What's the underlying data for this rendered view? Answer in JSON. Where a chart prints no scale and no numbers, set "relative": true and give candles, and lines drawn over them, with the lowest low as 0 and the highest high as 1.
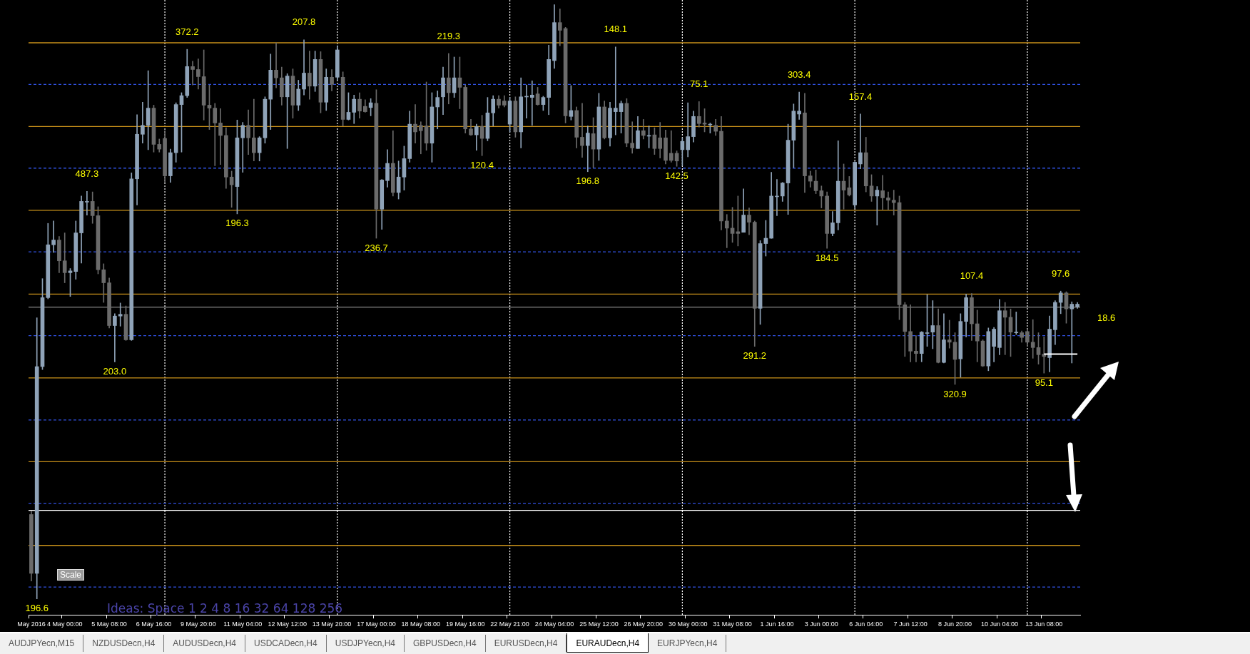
{
  "chart_data": {
    "type": "candlestick",
    "relative": true,
    "categories": [
      "May 2016",
      null,
      null,
      null,
      null,
      null,
      "4 May 00:00",
      null,
      null,
      null,
      null,
      null,
      null,
      null,
      "5 May 08:00",
      null,
      null,
      null,
      null,
      null,
      null,
      null,
      "6 May 16:00",
      null,
      null,
      null,
      null,
      null,
      null,
      null,
      "9 May 20:00",
      null,
      null,
      null,
      null,
      null,
      null,
      null,
      "11 May 04:00",
      null,
      null,
      null,
      null,
      null,
      null,
      null,
      "12 May 12:00",
      null,
      null,
      null,
      null,
      null,
      null,
      null,
      "13 May 20:00",
      null,
      null,
      null,
      null,
      null,
      null,
      null,
      "17 May 00:00",
      null,
      null,
      null,
      null,
      null,
      null,
      null,
      "18 May 08:00",
      null,
      null,
      null,
      null,
      null,
      null,
      null,
      "19 May 16:00",
      null,
      null,
      null,
      null,
      null,
      null,
      null,
      "22 May 21:00",
      null,
      null,
      null,
      null,
      null,
      null,
      null,
      "24 May 04:00",
      null,
      null,
      null,
      null,
      null,
      null,
      null,
      "25 May 12:00",
      null,
      null,
      null,
      null,
      null,
      null,
      null,
      "26 May 20:00",
      null,
      null,
      null,
      null,
      null,
      null,
      null,
      "30 May 00:00",
      null,
      null,
      null,
      null,
      null,
      null,
      null,
      "31 May 08:00",
      null,
      null,
      null,
      null,
      null,
      null,
      null,
      "1 Jun 16:00",
      null,
      null,
      null,
      null,
      null,
      null,
      null,
      "3 Jun 00:00",
      null,
      null,
      null,
      null,
      null,
      null,
      null,
      "6 Jun 04:00",
      null,
      null,
      null,
      null,
      null,
      null,
      null,
      "7 Jun 12:00",
      null,
      null,
      null,
      null,
      null,
      null,
      null,
      "8 Jun 20:00",
      null,
      null,
      null,
      null,
      null,
      null,
      null,
      "10 Jun 04:00",
      null,
      null,
      null,
      null,
      null,
      null,
      null,
      "13 Jun 08:00",
      null,
      null,
      null,
      null,
      null,
      null
    ],
    "ohlc": [
      [
        0.142,
        0.148,
        0.03,
        0.043
      ],
      [
        0.043,
        0.473,
        0,
        0.391
      ],
      [
        0.391,
        0.539,
        0.386,
        0.507
      ],
      [
        0.507,
        0.632,
        0.505,
        0.596
      ],
      [
        0.596,
        0.636,
        0.583,
        0.604
      ],
      [
        0.604,
        0.61,
        0.549,
        0.569
      ],
      [
        0.569,
        0.616,
        0.532,
        0.549
      ],
      [
        0.549,
        0.556,
        0.509,
        0.552
      ],
      [
        0.551,
        0.636,
        0.538,
        0.616
      ],
      [
        0.616,
        0.678,
        0.565,
        0.669
      ],
      [
        0.669,
        0.686,
        0.646,
        0.669
      ],
      [
        0.669,
        0.685,
        0.632,
        0.645
      ],
      [
        0.645,
        0.66,
        0.547,
        0.554
      ],
      [
        0.554,
        0.564,
        0.499,
        0.532
      ],
      [
        0.532,
        0.54,
        0.456,
        0.46
      ],
      [
        0.46,
        0.48,
        0.399,
        0.476
      ],
      [
        0.476,
        0.498,
        0.459,
        0.479
      ],
      [
        0.479,
        0.493,
        0.435,
        0.436
      ],
      [
        0.436,
        0.717,
        0.435,
        0.707
      ],
      [
        0.707,
        0.815,
        0.663,
        0.782
      ],
      [
        0.782,
        0.836,
        0.767,
        0.797
      ],
      [
        0.797,
        0.889,
        0.756,
        0.826
      ],
      [
        0.826,
        0.831,
        0.752,
        0.765
      ],
      [
        0.765,
        0.774,
        0.752,
        0.757
      ],
      [
        0.775,
        0.788,
        0.701,
        0.712
      ],
      [
        0.712,
        0.757,
        0.701,
        0.751
      ],
      [
        0.751,
        0.835,
        0.735,
        0.832
      ],
      [
        0.832,
        0.852,
        0.752,
        0.847
      ],
      [
        0.847,
        0.925,
        0.844,
        0.896
      ],
      [
        0.896,
        0.905,
        0.865,
        0.891
      ],
      [
        0.891,
        0.909,
        0.858,
        0.879
      ],
      [
        0.879,
        0.924,
        0.806,
        0.831
      ],
      [
        0.831,
        0.865,
        0.79,
        0.826
      ],
      [
        0.826,
        0.834,
        0.729,
        0.801
      ],
      [
        0.801,
        0.825,
        0.731,
        0.78
      ],
      [
        0.78,
        0.793,
        0.691,
        0.71
      ],
      [
        0.71,
        0.72,
        0.659,
        0.697
      ],
      [
        0.694,
        0.806,
        0.648,
        0.776
      ],
      [
        0.776,
        0.802,
        0.718,
        0.797
      ],
      [
        0.797,
        0.823,
        0.748,
        0.776
      ],
      [
        0.776,
        0.841,
        0.737,
        0.751
      ],
      [
        0.751,
        0.778,
        0.737,
        0.776
      ],
      [
        0.776,
        0.845,
        0.767,
        0.841
      ],
      [
        0.841,
        0.917,
        0.79,
        0.89
      ],
      [
        0.89,
        0.936,
        0.86,
        0.877
      ],
      [
        0.877,
        0.895,
        0.831,
        0.845
      ],
      [
        0.845,
        0.884,
        0.758,
        0.88
      ],
      [
        0.88,
        0.892,
        0.809,
        0.831
      ],
      [
        0.831,
        0.873,
        0.822,
        0.858
      ],
      [
        0.858,
        0.941,
        0.848,
        0.885
      ],
      [
        0.885,
        0.922,
        0.841,
        0.863
      ],
      [
        0.863,
        0.922,
        0.854,
        0.908
      ],
      [
        0.908,
        0.921,
        0.818,
        0.836
      ],
      [
        0.836,
        0.892,
        0.822,
        0.878
      ],
      [
        0.878,
        0.891,
        0.855,
        0.866
      ],
      [
        0.878,
        0.931,
        0.873,
        0.924
      ],
      [
        0.878,
        0.887,
        0.796,
        0.807
      ],
      [
        0.807,
        0.852,
        0.806,
        0.819
      ],
      [
        0.819,
        0.848,
        0.8,
        0.841
      ],
      [
        0.841,
        0.852,
        0.809,
        0.821
      ],
      [
        0.829,
        0.84,
        0.819,
        0.82
      ],
      [
        0.827,
        0.842,
        0.813,
        0.835
      ],
      [
        0.834,
        0.857,
        0.607,
        0.656
      ],
      [
        0.656,
        0.706,
        0.622,
        0.705
      ],
      [
        0.704,
        0.756,
        0.693,
        0.733
      ],
      [
        0.733,
        0.788,
        0.678,
        0.684
      ],
      [
        0.684,
        0.737,
        0.673,
        0.71
      ],
      [
        0.71,
        0.762,
        0.688,
        0.741
      ],
      [
        0.741,
        0.821,
        0.735,
        0.799
      ],
      [
        0.799,
        0.832,
        0.767,
        0.786
      ],
      [
        0.797,
        0.803,
        0.749,
        0.788
      ],
      [
        0.796,
        0.87,
        0.755,
        0.767
      ],
      [
        0.767,
        0.852,
        0.735,
        0.828
      ],
      [
        0.828,
        0.855,
        0.791,
        0.844
      ],
      [
        0.845,
        0.895,
        0.815,
        0.877
      ],
      [
        0.877,
        0.918,
        0.833,
        0.852
      ],
      [
        0.852,
        0.912,
        0.844,
        0.877
      ],
      [
        0.877,
        0.912,
        0.825,
        0.861
      ],
      [
        0.861,
        0.865,
        0.784,
        0.791
      ],
      [
        0.791,
        0.807,
        0.78,
        0.781
      ],
      [
        0.781,
        0.799,
        0.755,
        0.795
      ],
      [
        0.795,
        0.814,
        0.746,
        0.775
      ],
      [
        0.775,
        0.844,
        0.771,
        0.818
      ],
      [
        0.818,
        0.847,
        0.796,
        0.841
      ],
      [
        0.841,
        0.847,
        0.826,
        0.831
      ],
      [
        0.838,
        0.847,
        0.828,
        0.831
      ],
      [
        0.799,
        0.844,
        0.786,
        0.838
      ],
      [
        0.838,
        0.845,
        0.777,
        0.786
      ],
      [
        0.786,
        0.877,
        0.759,
        0.845
      ],
      [
        0.846,
        0.865,
        0.809,
        0.846
      ],
      [
        0.844,
        0.872,
        0.797,
        0.848
      ],
      [
        0.85,
        0.861,
        0.831,
        0.832
      ],
      [
        0.832,
        0.846,
        0.822,
        0.844
      ],
      [
        0.844,
        0.932,
        0.815,
        0.908
      ],
      [
        0.906,
        1,
        0.893,
        0.97
      ],
      [
        0.97,
        0.993,
        0.931,
        0.957
      ],
      [
        0.96,
        0.962,
        0.801,
        0.813
      ],
      [
        0.812,
        0.864,
        0.806,
        0.822
      ],
      [
        0.822,
        0.828,
        0.759,
        0.777
      ],
      [
        0.777,
        0.834,
        0.743,
        0.763
      ],
      [
        0.763,
        0.796,
        0.719,
        0.784
      ],
      [
        0.783,
        0.81,
        0.726,
        0.757
      ],
      [
        0.757,
        0.851,
        0.738,
        0.828
      ],
      [
        0.828,
        0.838,
        0.774,
        0.776
      ],
      [
        0.776,
        0.836,
        0.762,
        0.826
      ],
      [
        0.82,
        0.929,
        0.781,
        0.826
      ],
      [
        0.82,
        0.838,
        0.784,
        0.834
      ],
      [
        0.834,
        0.842,
        0.761,
        0.767
      ],
      [
        0.767,
        0.803,
        0.75,
        0.759
      ],
      [
        0.758,
        0.812,
        0.758,
        0.788
      ],
      [
        0.788,
        0.807,
        0.774,
        0.78
      ],
      [
        0.78,
        0.796,
        0.759,
        0.78
      ],
      [
        0.781,
        0.793,
        0.748,
        0.758
      ],
      [
        0.776,
        0.802,
        0.742,
        0.758
      ],
      [
        0.776,
        0.789,
        0.732,
        0.738
      ],
      [
        0.75,
        0.788,
        0.735,
        0.738
      ],
      [
        0.75,
        0.754,
        0.728,
        0.737
      ],
      [
        0.756,
        0.776,
        0.729,
        0.77
      ],
      [
        0.756,
        0.835,
        0.744,
        0.778
      ],
      [
        0.778,
        0.821,
        0.769,
        0.812
      ],
      [
        0.812,
        0.837,
        0.794,
        0.8
      ],
      [
        0.801,
        0.825,
        0.786,
        0.799
      ],
      [
        0.799,
        0.801,
        0.784,
        0.799
      ],
      [
        0.797,
        0.807,
        0.78,
        0.787
      ],
      [
        0.787,
        0.812,
        0.621,
        0.636
      ],
      [
        0.636,
        0.647,
        0.591,
        0.624
      ],
      [
        0.624,
        0.659,
        0.6,
        0.615
      ],
      [
        0.618,
        0.678,
        0.594,
        0.615
      ],
      [
        0.617,
        0.69,
        0.617,
        0.646
      ],
      [
        0.646,
        0.658,
        0.613,
        0.634
      ],
      [
        0.634,
        0.636,
        0.425,
        0.489
      ],
      [
        0.489,
        0.603,
        0.462,
        0.598
      ],
      [
        0.598,
        0.637,
        0.577,
        0.607
      ],
      [
        0.607,
        0.718,
        0.607,
        0.678
      ],
      [
        0.678,
        0.706,
        0.645,
        0.678
      ],
      [
        0.678,
        0.701,
        0.669,
        0.7
      ],
      [
        0.7,
        0.799,
        0.647,
        0.772
      ],
      [
        0.772,
        0.833,
        0.726,
        0.821
      ],
      [
        0.816,
        0.853,
        0.807,
        0.821
      ],
      [
        0.818,
        0.851,
        0.684,
        0.712
      ],
      [
        0.712,
        0.72,
        0.693,
        0.703
      ],
      [
        0.703,
        0.722,
        0.682,
        0.687
      ],
      [
        0.687,
        0.695,
        0.658,
        0.678
      ],
      [
        0.678,
        0.685,
        0.59,
        0.615
      ],
      [
        0.615,
        0.652,
        0.611,
        0.633
      ],
      [
        0.633,
        0.771,
        0.621,
        0.703
      ],
      [
        0.703,
        0.732,
        0.656,
        0.688
      ],
      [
        0.692,
        0.711,
        0.678,
        0.68
      ],
      [
        0.663,
        0.736,
        0.658,
        0.735
      ],
      [
        0.732,
        0.816,
        0.724,
        0.751
      ],
      [
        0.751,
        0.777,
        0.685,
        0.695
      ],
      [
        0.695,
        0.714,
        0.669,
        0.678
      ],
      [
        0.678,
        0.694,
        0.629,
        0.688
      ],
      [
        0.687,
        0.713,
        0.655,
        0.675
      ],
      [
        0.675,
        0.685,
        0.655,
        0.671
      ],
      [
        0.671,
        0.688,
        0.646,
        0.667
      ],
      [
        0.667,
        0.678,
        0.47,
        0.495
      ],
      [
        0.495,
        0.499,
        0.408,
        0.45
      ],
      [
        0.45,
        0.495,
        0.399,
        0.417
      ],
      [
        0.417,
        0.443,
        0.399,
        0.413
      ],
      [
        0.413,
        0.45,
        0.399,
        0.449
      ],
      [
        0.448,
        0.512,
        0.425,
        0.448
      ],
      [
        0.449,
        0.502,
        0.421,
        0.46
      ],
      [
        0.46,
        0.488,
        0.397,
        0.398
      ],
      [
        0.398,
        0.48,
        0.397,
        0.436
      ],
      [
        0.436,
        0.469,
        0.422,
        0.432
      ],
      [
        0.432,
        0.448,
        0.361,
        0.403
      ],
      [
        0.404,
        0.48,
        0.373,
        0.467
      ],
      [
        0.467,
        0.513,
        0.441,
        0.507
      ],
      [
        0.507,
        0.514,
        0.435,
        0.463
      ],
      [
        0.463,
        0.486,
        0.399,
        0.434
      ],
      [
        0.434,
        0.436,
        0.391,
        0.392
      ],
      [
        0.392,
        0.456,
        0.384,
        0.45
      ],
      [
        0.425,
        0.457,
        0.399,
        0.454
      ],
      [
        0.423,
        0.504,
        0.411,
        0.485
      ],
      [
        0.485,
        0.499,
        0.411,
        0.474
      ],
      [
        0.474,
        0.488,
        0.408,
        0.449
      ],
      [
        0.449,
        0.483,
        0.445,
        0.449
      ],
      [
        0.448,
        0.451,
        0.432,
        0.44
      ],
      [
        0.45,
        0.454,
        0.425,
        0.432
      ],
      [
        0.432,
        0.47,
        0.405,
        0.423
      ],
      [
        0.423,
        0.448,
        0.395,
        0.411
      ],
      [
        0.412,
        0.441,
        0.38,
        0.408
      ],
      [
        0.406,
        0.476,
        0.382,
        0.454
      ],
      [
        0.453,
        0.502,
        0.428,
        0.499
      ],
      [
        0.499,
        0.518,
        0.48,
        0.515
      ],
      [
        0.515,
        0.517,
        0.464,
        0.488
      ],
      [
        0.488,
        0.5,
        0.397,
        0.496
      ],
      [
        0.492,
        0.499,
        0.489,
        0.496
      ]
    ],
    "colors": [
      "#6b6b6b",
      "#8fa3b8",
      "#8fa3b8",
      "#8fa3b8",
      "#8fa3b8",
      "#6b6b6b",
      "#6b6b6b",
      "#8fa3b8",
      "#8fa3b8",
      "#8fa3b8",
      "#8fa3b8",
      "#6b6b6b",
      "#6b6b6b",
      "#6b6b6b",
      "#6b6b6b",
      "#8fa3b8",
      "#8fa3b8",
      "#6b6b6b",
      "#8fa3b8",
      "#8fa3b8",
      "#8fa3b8",
      "#8fa3b8",
      "#6b6b6b",
      "#6b6b6b",
      "#6b6b6b",
      "#8fa3b8",
      "#8fa3b8",
      "#8fa3b8",
      "#8fa3b8",
      "#6b6b6b",
      "#6b6b6b",
      "#6b6b6b",
      "#6b6b6b",
      "#6b6b6b",
      "#6b6b6b",
      "#6b6b6b",
      "#6b6b6b",
      "#8fa3b8",
      "#8fa3b8",
      "#6b6b6b",
      "#6b6b6b",
      "#8fa3b8",
      "#8fa3b8",
      "#8fa3b8",
      "#6b6b6b",
      "#6b6b6b",
      "#8fa3b8",
      "#6b6b6b",
      "#8fa3b8",
      "#8fa3b8",
      "#6b6b6b",
      "#8fa3b8",
      "#6b6b6b",
      "#8fa3b8",
      "#6b6b6b",
      "#8fa3b8",
      "#6b6b6b",
      "#8fa3b8",
      "#8fa3b8",
      "#6b6b6b",
      "#6b6b6b",
      "#8fa3b8",
      "#6b6b6b",
      "#8fa3b8",
      "#8fa3b8",
      "#6b6b6b",
      "#8fa3b8",
      "#8fa3b8",
      "#8fa3b8",
      "#6b6b6b",
      "#6b6b6b",
      "#6b6b6b",
      "#8fa3b8",
      "#8fa3b8",
      "#8fa3b8",
      "#6b6b6b",
      "#8fa3b8",
      "#6b6b6b",
      "#6b6b6b",
      "#6b6b6b",
      "#8fa3b8",
      "#6b6b6b",
      "#8fa3b8",
      "#8fa3b8",
      "#6b6b6b",
      "#6b6b6b",
      "#8fa3b8",
      "#6b6b6b",
      "#8fa3b8",
      "#8fa3b8",
      "#8fa3b8",
      "#6b6b6b",
      "#8fa3b8",
      "#8fa3b8",
      "#8fa3b8",
      "#6b6b6b",
      "#6b6b6b",
      "#8fa3b8",
      "#6b6b6b",
      "#6b6b6b",
      "#8fa3b8",
      "#6b6b6b",
      "#8fa3b8",
      "#6b6b6b",
      "#8fa3b8",
      "#8fa3b8",
      "#8fa3b8",
      "#6b6b6b",
      "#6b6b6b",
      "#8fa3b8",
      "#6b6b6b",
      "#8fa3b8",
      "#6b6b6b",
      "#6b6b6b",
      "#6b6b6b",
      "#6b6b6b",
      "#6b6b6b",
      "#8fa3b8",
      "#8fa3b8",
      "#8fa3b8",
      "#6b6b6b",
      "#6b6b6b",
      "#8fa3b8",
      "#6b6b6b",
      "#6b6b6b",
      "#6b6b6b",
      "#6b6b6b",
      "#6b6b6b",
      "#8fa3b8",
      "#6b6b6b",
      "#6b6b6b",
      "#8fa3b8",
      "#8fa3b8",
      "#8fa3b8",
      "#8fa3b8",
      "#8fa3b8",
      "#8fa3b8",
      "#8fa3b8",
      "#8fa3b8",
      "#6b6b6b",
      "#6b6b6b",
      "#6b6b6b",
      "#6b6b6b",
      "#6b6b6b",
      "#8fa3b8",
      "#8fa3b8",
      "#6b6b6b",
      "#6b6b6b",
      "#8fa3b8",
      "#8fa3b8",
      "#6b6b6b",
      "#6b6b6b",
      "#8fa3b8",
      "#6b6b6b",
      "#6b6b6b",
      "#6b6b6b",
      "#6b6b6b",
      "#6b6b6b",
      "#6b6b6b",
      "#6b6b6b",
      "#8fa3b8",
      "#8fa3b8",
      "#8fa3b8",
      "#6b6b6b",
      "#8fa3b8",
      "#6b6b6b",
      "#6b6b6b",
      "#8fa3b8",
      "#8fa3b8",
      "#6b6b6b",
      "#6b6b6b",
      "#6b6b6b",
      "#8fa3b8",
      "#8fa3b8",
      "#8fa3b8",
      "#6b6b6b",
      "#6b6b6b",
      "#8fa3b8",
      "#6b6b6b",
      "#6b6b6b",
      "#6b6b6b",
      "#6b6b6b",
      "#6b6b6b",
      "#8fa3b8",
      "#8fa3b8",
      "#8fa3b8",
      "#6b6b6b",
      "#8fa3b8",
      "#8fa3b8"
    ],
    "series": [
      {
        "type": "line",
        "color": "#ffffff",
        "values": [
          null,
          null,
          null,
          null,
          null,
          null,
          null,
          null,
          null,
          null,
          null,
          null,
          null,
          null,
          null,
          null,
          null,
          null,
          null,
          null,
          null,
          null,
          null,
          null,
          null,
          null,
          null,
          null,
          null,
          null,
          null,
          null,
          null,
          null,
          null,
          null,
          null,
          null,
          null,
          null,
          null,
          null,
          null,
          null,
          null,
          null,
          null,
          null,
          null,
          null,
          null,
          null,
          null,
          null,
          null,
          null,
          null,
          null,
          null,
          null,
          null,
          null,
          null,
          null,
          null,
          null,
          null,
          null,
          null,
          null,
          null,
          null,
          null,
          null,
          null,
          null,
          null,
          null,
          null,
          null,
          null,
          null,
          null,
          null,
          null,
          null,
          null,
          null,
          null,
          null,
          null,
          null,
          null,
          null,
          null,
          null,
          null,
          null,
          null,
          null,
          null,
          null,
          null,
          null,
          null,
          null,
          null,
          null,
          null,
          null,
          null,
          null,
          null,
          null,
          null,
          null,
          null,
          null,
          null,
          null,
          null,
          null,
          null,
          null,
          null,
          null,
          null,
          null,
          null,
          null,
          null,
          null,
          null,
          null,
          null,
          null,
          null,
          null,
          null,
          null,
          null,
          null,
          null,
          null,
          null,
          null,
          null,
          null,
          null,
          null,
          null,
          null,
          null,
          null,
          null,
          null,
          null,
          null,
          null,
          null,
          null,
          null,
          null,
          null,
          null,
          null,
          null,
          null,
          null,
          null,
          null,
          null,
          null,
          null,
          null,
          null,
          null,
          null,
          null,
          null,
          null,
          null,
          0.412,
          0.412,
          0.412,
          0.412,
          0.412,
          0.412,
          0.412
        ]
      }
    ],
    "ref_lines": [
      {
        "axis": "y",
        "value": 0.936,
        "color": "#c8901a",
        "line_style": "solid"
      },
      {
        "axis": "y",
        "value": 0.795,
        "color": "#c8901a",
        "line_style": "solid"
      },
      {
        "axis": "y",
        "value": 0.654,
        "color": "#c8901a",
        "line_style": "solid"
      },
      {
        "axis": "y",
        "value": 0.513,
        "color": "#c8901a",
        "line_style": "solid"
      },
      {
        "axis": "y",
        "value": 0.372,
        "color": "#c8901a",
        "line_style": "solid"
      },
      {
        "axis": "y",
        "value": 0.231,
        "color": "#c8901a",
        "line_style": "solid"
      },
      {
        "axis": "y",
        "value": 0.09,
        "color": "#c8901a",
        "line_style": "solid"
      },
      {
        "axis": "y",
        "value": 0.866,
        "color": "#3050e0",
        "line_style": "dashed"
      },
      {
        "axis": "y",
        "value": 0.725,
        "color": "#3050e0",
        "line_style": "dashed"
      },
      {
        "axis": "y",
        "value": 0.584,
        "color": "#3050e0",
        "line_style": "dashed"
      },
      {
        "axis": "y",
        "value": 0.443,
        "color": "#3050e0",
        "line_style": "dashed"
      },
      {
        "axis": "y",
        "value": 0.301,
        "color": "#3050e0",
        "line_style": "dashed"
      },
      {
        "axis": "y",
        "value": 0.161,
        "color": "#3050e0",
        "line_style": "dashed"
      },
      {
        "axis": "y",
        "value": 0.02,
        "color": "#3050e0",
        "line_style": "dashed"
      },
      {
        "axis": "y",
        "value": 0.149,
        "color": "#ffffff",
        "line_style": "solid"
      },
      {
        "axis": "y",
        "value": 0.491,
        "color": "#8a8a8a",
        "line_style": "solid"
      }
    ],
    "annotations": [
      {
        "text": "196.6",
        "y": 0
      },
      {
        "text": "487.3",
        "y": 0.686
      },
      {
        "text": "203.0",
        "y": 0.399
      },
      {
        "text": "372.2",
        "y": 0.925
      },
      {
        "text": "196.3",
        "y": 0.648
      },
      {
        "text": "207.8",
        "y": 0.941
      },
      {
        "text": "236.7",
        "y": 0.607
      },
      {
        "text": "219.3",
        "y": 0.918
      },
      {
        "text": "120.4",
        "y": 0.746
      },
      {
        "text": "196.8",
        "y": 0.719
      },
      {
        "text": "148.1",
        "y": 0.929
      },
      {
        "text": "142.5",
        "y": 0.728
      },
      {
        "text": "75.1",
        "y": 0.837
      },
      {
        "text": "291.2",
        "y": 0.425
      },
      {
        "text": "303.4",
        "y": 0.853
      },
      {
        "text": "157.4",
        "y": 0.816
      },
      {
        "text": "184.5",
        "y": 0.59
      },
      {
        "text": "107.4",
        "y": 0.514
      },
      {
        "text": "320.9",
        "y": 0.361
      },
      {
        "text": "97.6",
        "y": 0.518
      },
      {
        "text": "95.1",
        "y": 0.38
      },
      "18.6",
      "Scale",
      "Ideas: Space 1 2 4 8 16 32 64 128 256",
      "AUDJPYecn,M15",
      "NZDUSDecn,H4",
      "AUDUSDecn,H4",
      "USDCADecn,H4",
      "USDJPYecn,H4",
      "GBPUSDecn,H4",
      "EURUSDecn,H4",
      "EURAUDecn,H4",
      "EURJPYecn,H4"
    ]
  }
}
